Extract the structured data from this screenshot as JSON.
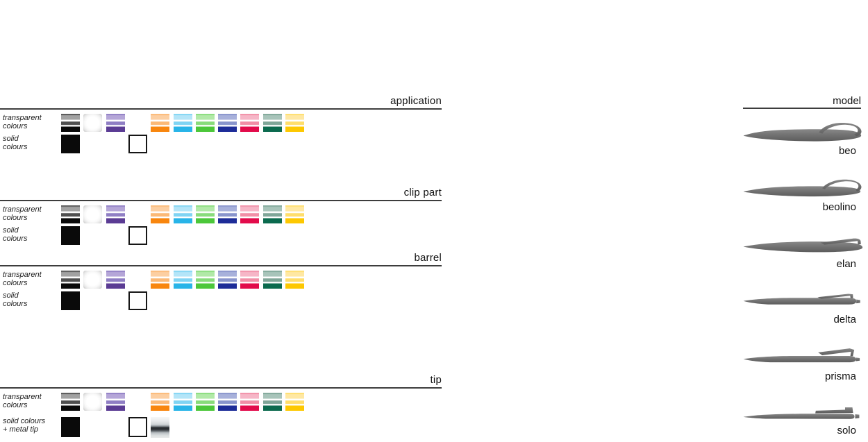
{
  "page": {
    "background": "#ffffff",
    "rule_color": "#3d3d3d",
    "text_color": "#111111"
  },
  "left_panel": {
    "sections": [
      {
        "id": "application",
        "title": "application",
        "rows": [
          {
            "type": "transparent",
            "label_lines": [
              "transparent",
              "colours"
            ],
            "swatches": [
              {
                "col": 0,
                "color": "smoke"
              },
              {
                "col": 1,
                "color": "clear"
              },
              {
                "col": 2,
                "color": "purple"
              },
              {
                "col": 4,
                "color": "orange"
              },
              {
                "col": 5,
                "color": "cyan"
              },
              {
                "col": 6,
                "color": "green"
              },
              {
                "col": 7,
                "color": "blue"
              },
              {
                "col": 8,
                "color": "red"
              },
              {
                "col": 9,
                "color": "teal"
              },
              {
                "col": 10,
                "color": "yellow"
              }
            ]
          },
          {
            "type": "solid",
            "label_lines": [
              "solid",
              "colours"
            ],
            "swatches": [
              {
                "col": 0,
                "color": "black"
              },
              {
                "col": 3,
                "color": "white"
              }
            ]
          }
        ]
      },
      {
        "id": "clip-part",
        "title": "clip part",
        "rows": [
          {
            "type": "transparent",
            "label_lines": [
              "transparent",
              "colours"
            ],
            "swatches": [
              {
                "col": 0,
                "color": "smoke"
              },
              {
                "col": 1,
                "color": "clear"
              },
              {
                "col": 2,
                "color": "purple"
              },
              {
                "col": 4,
                "color": "orange"
              },
              {
                "col": 5,
                "color": "cyan"
              },
              {
                "col": 6,
                "color": "green"
              },
              {
                "col": 7,
                "color": "blue"
              },
              {
                "col": 8,
                "color": "red"
              },
              {
                "col": 9,
                "color": "teal"
              },
              {
                "col": 10,
                "color": "yellow"
              }
            ]
          },
          {
            "type": "solid",
            "label_lines": [
              "solid",
              "colours"
            ],
            "swatches": [
              {
                "col": 0,
                "color": "black"
              },
              {
                "col": 3,
                "color": "white"
              }
            ]
          }
        ]
      },
      {
        "id": "barrel",
        "title": "barrel",
        "rows": [
          {
            "type": "transparent",
            "label_lines": [
              "transparent",
              "colours"
            ],
            "swatches": [
              {
                "col": 0,
                "color": "smoke"
              },
              {
                "col": 1,
                "color": "clear"
              },
              {
                "col": 2,
                "color": "purple"
              },
              {
                "col": 4,
                "color": "orange"
              },
              {
                "col": 5,
                "color": "cyan"
              },
              {
                "col": 6,
                "color": "green"
              },
              {
                "col": 7,
                "color": "blue"
              },
              {
                "col": 8,
                "color": "red"
              },
              {
                "col": 9,
                "color": "teal"
              },
              {
                "col": 10,
                "color": "yellow"
              }
            ]
          },
          {
            "type": "solid",
            "label_lines": [
              "solid",
              "colours"
            ],
            "swatches": [
              {
                "col": 0,
                "color": "black"
              },
              {
                "col": 3,
                "color": "white"
              }
            ]
          }
        ]
      },
      {
        "id": "tip",
        "title": "tip",
        "rows": [
          {
            "type": "transparent",
            "label_lines": [
              "transparent",
              "colours"
            ],
            "swatches": [
              {
                "col": 0,
                "color": "smoke"
              },
              {
                "col": 1,
                "color": "clear"
              },
              {
                "col": 2,
                "color": "purple"
              },
              {
                "col": 4,
                "color": "orange"
              },
              {
                "col": 5,
                "color": "cyan"
              },
              {
                "col": 6,
                "color": "green"
              },
              {
                "col": 7,
                "color": "blue"
              },
              {
                "col": 8,
                "color": "red"
              },
              {
                "col": 9,
                "color": "teal"
              },
              {
                "col": 10,
                "color": "yellow"
              }
            ]
          },
          {
            "type": "solid",
            "label_lines": [
              "solid colours",
              "+ metal tip"
            ],
            "swatches": [
              {
                "col": 0,
                "color": "black"
              },
              {
                "col": 3,
                "color": "white"
              },
              {
                "col": 4,
                "color": "metal"
              }
            ]
          }
        ]
      }
    ],
    "palette": {
      "smoke": {
        "light": "#a2a2a2",
        "mid": "#4f4f4f",
        "solid": "#0a0a0a"
      },
      "clear": {
        "solid": "#ffffff"
      },
      "purple": {
        "light": "#b5a6d8",
        "mid": "#8f7ec4",
        "solid": "#5b3c94"
      },
      "orange": {
        "light": "#fccfa2",
        "mid": "#fbb976",
        "solid": "#f8860e"
      },
      "cyan": {
        "light": "#b4e5f8",
        "mid": "#7fd4f3",
        "solid": "#28b4e8"
      },
      "green": {
        "light": "#b2e9a8",
        "mid": "#88dc7b",
        "solid": "#4cc73a"
      },
      "blue": {
        "light": "#a8b1db",
        "mid": "#8894cc",
        "solid": "#1d2c98"
      },
      "red": {
        "light": "#f6b6c7",
        "mid": "#f18ea6",
        "solid": "#e20b4b"
      },
      "teal": {
        "light": "#a8c4ba",
        "mid": "#7fa698",
        "solid": "#0b6a4e"
      },
      "yellow": {
        "light": "#ffe8a3",
        "mid": "#ffde6b",
        "solid": "#fdc801"
      },
      "black": {
        "solid": "#0a0a0a"
      },
      "white": {
        "solid": "#ffffff",
        "border": "#161616"
      },
      "metal": {
        "stops": [
          "#f6f7f7 0%",
          "#e9ebec 18%",
          "#cfd3d6 36%",
          "#8f959a 44%",
          "#2e3236 50%",
          "#262a2e 58%",
          "#5a6065 66%",
          "#b9bfc3 76%",
          "#dadedf 88%",
          "#e9ebeb 100%"
        ]
      }
    }
  },
  "right_panel": {
    "title": "model",
    "pen_color": "#747474",
    "models": [
      {
        "name": "beo"
      },
      {
        "name": "beolino"
      },
      {
        "name": "elan"
      },
      {
        "name": "delta"
      },
      {
        "name": "prisma"
      },
      {
        "name": "solo"
      }
    ]
  }
}
